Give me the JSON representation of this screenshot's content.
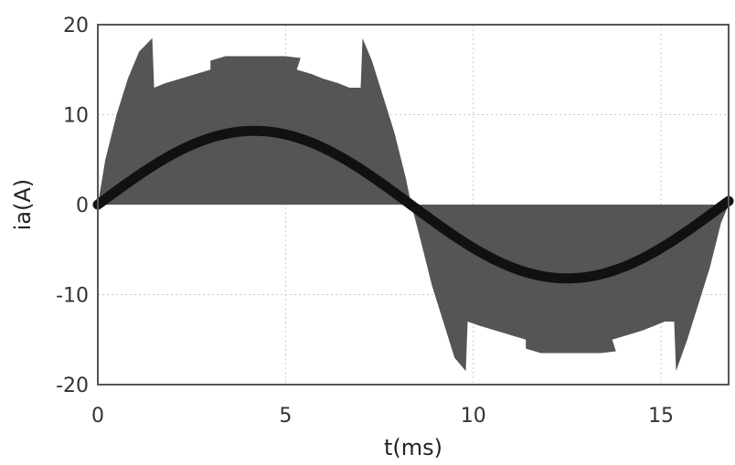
{
  "chart_data": {
    "type": "area",
    "xlabel": "t(ms)",
    "ylabel": "ia(A)",
    "xlim": [
      0,
      16.8
    ],
    "ylim": [
      -20,
      20
    ],
    "x_ticks": [
      0,
      5,
      10,
      15
    ],
    "y_ticks": [
      -20,
      -10,
      0,
      10,
      20
    ],
    "x_tick_labels": [
      "0",
      "5",
      "10",
      "15"
    ],
    "y_tick_labels": [
      "-20",
      "-10",
      "0",
      "10",
      "20"
    ],
    "grid": true,
    "colors": {
      "envelope": "#555555",
      "fundamental": "#111111",
      "grid": "#c8c8c8"
    },
    "fundamental": {
      "amplitude": 8.2,
      "period_ms": 16.67
    },
    "envelope_positive": {
      "x": [
        0,
        0.2,
        0.5,
        0.8,
        1.1,
        1.45,
        1.5,
        1.8,
        2.2,
        2.6,
        3.0,
        3.0,
        3.4,
        3.8,
        4.2,
        4.6,
        5.0,
        5.4,
        5.3,
        5.7,
        6.0,
        6.4,
        6.7,
        7.0,
        7.05,
        7.3,
        7.6,
        7.9,
        8.2,
        8.35
      ],
      "y": [
        0,
        5,
        10,
        14,
        17,
        18.5,
        13,
        13.5,
        14,
        14.5,
        15,
        16,
        16.5,
        16.5,
        16.5,
        16.5,
        16.5,
        16.3,
        15,
        14.5,
        14,
        13.5,
        13,
        13,
        18.5,
        16,
        12,
        8,
        3,
        0
      ]
    },
    "envelope_negative": {
      "x": [
        8.35,
        8.6,
        8.9,
        9.2,
        9.5,
        9.8,
        9.85,
        10.2,
        10.6,
        11.0,
        11.4,
        11.4,
        11.8,
        12.2,
        12.6,
        13.0,
        13.4,
        13.8,
        13.7,
        14.1,
        14.5,
        14.8,
        15.1,
        15.35,
        15.4,
        15.7,
        16.0,
        16.3,
        16.6,
        16.8
      ],
      "y": [
        0,
        -4,
        -9,
        -13,
        -17,
        -18.5,
        -13,
        -13.5,
        -14,
        -14.5,
        -15,
        -16,
        -16.5,
        -16.5,
        -16.5,
        -16.5,
        -16.5,
        -16.3,
        -15,
        -14.5,
        -14,
        -13.5,
        -13,
        -13,
        -18.5,
        -15,
        -11,
        -7,
        -2,
        0
      ]
    }
  }
}
